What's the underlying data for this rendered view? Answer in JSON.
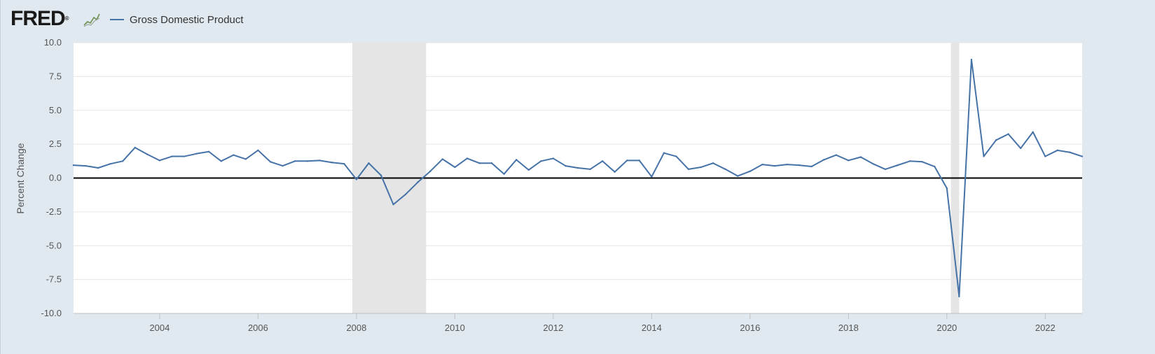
{
  "header": {
    "logo_text": "FRED",
    "logo_mark": "®",
    "chart_icon": "line-chart-icon"
  },
  "colors": {
    "series": "#4572a7",
    "recession": "#e5e5e5",
    "plot_bg": "#ffffff",
    "frame_bg": "#e1e9f0",
    "zero_line": "#000000",
    "grid": "#e6e6e6"
  },
  "chart_data": {
    "type": "line",
    "title": "",
    "xlabel": "",
    "ylabel": "Percent Change",
    "ylim": [
      -10,
      10
    ],
    "xlim": [
      2002.25,
      2022.75
    ],
    "yticks": [
      "10.0",
      "7.5",
      "5.0",
      "2.5",
      "0.0",
      "-2.5",
      "-5.0",
      "-7.5",
      "-10.0"
    ],
    "xticks": [
      "2004",
      "2006",
      "2008",
      "2010",
      "2012",
      "2014",
      "2016",
      "2018",
      "2020",
      "2022"
    ],
    "grid": true,
    "legend": "top-left",
    "recessions": [
      [
        2007.917,
        2009.417
      ],
      [
        2020.083,
        2020.25
      ]
    ],
    "series": [
      {
        "name": "Gross Domestic Product",
        "x": [
          2002.25,
          2002.5,
          2002.75,
          2003.0,
          2003.25,
          2003.5,
          2003.75,
          2004.0,
          2004.25,
          2004.5,
          2004.75,
          2005.0,
          2005.25,
          2005.5,
          2005.75,
          2006.0,
          2006.25,
          2006.5,
          2006.75,
          2007.0,
          2007.25,
          2007.5,
          2007.75,
          2008.0,
          2008.25,
          2008.5,
          2008.75,
          2009.0,
          2009.25,
          2009.5,
          2009.75,
          2010.0,
          2010.25,
          2010.5,
          2010.75,
          2011.0,
          2011.25,
          2011.5,
          2011.75,
          2012.0,
          2012.25,
          2012.5,
          2012.75,
          2013.0,
          2013.25,
          2013.5,
          2013.75,
          2014.0,
          2014.25,
          2014.5,
          2014.75,
          2015.0,
          2015.25,
          2015.5,
          2015.75,
          2016.0,
          2016.25,
          2016.5,
          2016.75,
          2017.0,
          2017.25,
          2017.5,
          2017.75,
          2018.0,
          2018.25,
          2018.5,
          2018.75,
          2019.0,
          2019.25,
          2019.5,
          2019.75,
          2020.0,
          2020.25,
          2020.5,
          2020.75,
          2021.0,
          2021.25,
          2021.5,
          2021.75,
          2022.0,
          2022.25,
          2022.5,
          2022.75
        ],
        "values": [
          0.95,
          0.9,
          0.75,
          1.05,
          1.25,
          2.25,
          1.75,
          1.3,
          1.6,
          1.6,
          1.8,
          1.95,
          1.25,
          1.7,
          1.4,
          2.05,
          1.2,
          0.9,
          1.25,
          1.25,
          1.3,
          1.15,
          1.05,
          -0.1,
          1.1,
          0.2,
          -1.95,
          -1.2,
          -0.3,
          0.5,
          1.4,
          0.8,
          1.45,
          1.1,
          1.1,
          0.3,
          1.35,
          0.6,
          1.25,
          1.45,
          0.9,
          0.75,
          0.65,
          1.25,
          0.45,
          1.3,
          1.3,
          0.1,
          1.85,
          1.6,
          0.65,
          0.8,
          1.1,
          0.65,
          0.15,
          0.5,
          1.0,
          0.9,
          1.0,
          0.95,
          0.85,
          1.35,
          1.7,
          1.3,
          1.55,
          1.05,
          0.65,
          0.95,
          1.25,
          1.2,
          0.85,
          -0.75,
          -8.75,
          8.75,
          1.6,
          2.8,
          3.25,
          2.2,
          3.4,
          1.6,
          2.05,
          1.9,
          1.6
        ]
      }
    ]
  }
}
